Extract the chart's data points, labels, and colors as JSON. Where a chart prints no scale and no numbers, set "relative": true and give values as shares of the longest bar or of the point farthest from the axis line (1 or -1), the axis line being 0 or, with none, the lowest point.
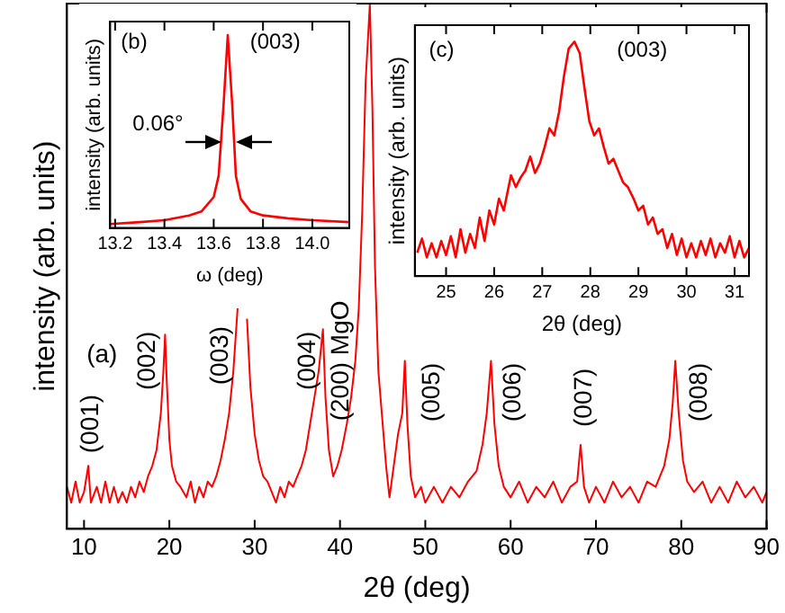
{
  "chart_data": [
    {
      "type": "line",
      "relative": true,
      "xlabel": "2θ (deg)",
      "ylabel": "intensity (arb. units)",
      "xlim": [
        8,
        90
      ],
      "xticks": [
        10,
        20,
        30,
        40,
        50,
        60,
        70,
        80,
        90
      ],
      "x": [
        8,
        8.5,
        9,
        9.5,
        10,
        10.5,
        10.8,
        11.5,
        12,
        12.5,
        13,
        13.5,
        14,
        14.5,
        15,
        15.5,
        16,
        16.5,
        17,
        17.5,
        18,
        18.5,
        19,
        19.3,
        19.5,
        19.7,
        20,
        20.3,
        20.8,
        21.3,
        22,
        22.5,
        23,
        23.5,
        24,
        24.5,
        25,
        25.5,
        26,
        26.5,
        27,
        27.5,
        28,
        28.4,
        28.6,
        28.8,
        29.1,
        29.5,
        30,
        30.5,
        31,
        31.5,
        32,
        32.5,
        33,
        33.5,
        34,
        34.5,
        35,
        35.5,
        36,
        36.5,
        37,
        37.5,
        38,
        38.3,
        38.7,
        39.2,
        39.7,
        40.2,
        40.8,
        41.3,
        41.8,
        42.2,
        42.6,
        43,
        43.5,
        43.8,
        44.1,
        44.5,
        45,
        45.4,
        45.8,
        46.3,
        46.8,
        47.3,
        47.6,
        47.9,
        48.3,
        48.8,
        49.5,
        50,
        51,
        52,
        53,
        54,
        55,
        56,
        56.7,
        57.2,
        57.7,
        58.1,
        58.6,
        59.2,
        60,
        61,
        62,
        63,
        64,
        65,
        66,
        67,
        67.8,
        68.2,
        68.6,
        69.2,
        70,
        71,
        72,
        73,
        74,
        75,
        76,
        77,
        78,
        78.6,
        79,
        79.3,
        79.7,
        80.2,
        80.7,
        81.5,
        82.5,
        83.5,
        84.5,
        85.5,
        86.5,
        87.5,
        88.5,
        89.5,
        90
      ],
      "series": [
        {
          "color": "#ff0000",
          "values": [
            0.08,
            0.05,
            0.09,
            0.05,
            0.07,
            0.12,
            0.05,
            0.08,
            0.05,
            0.09,
            0.05,
            0.08,
            0.05,
            0.07,
            0.05,
            0.08,
            0.06,
            0.09,
            0.07,
            0.1,
            0.12,
            0.15,
            0.22,
            0.3,
            0.37,
            0.28,
            0.17,
            0.12,
            0.09,
            0.08,
            0.06,
            0.09,
            0.05,
            0.08,
            0.06,
            0.09,
            0.08,
            0.1,
            0.13,
            0.17,
            0.22,
            0.3,
            0.42,
            null,
            null,
            null,
            0.4,
            0.27,
            0.18,
            0.13,
            0.1,
            0.09,
            0.07,
            0.05,
            0.08,
            0.06,
            0.09,
            0.08,
            0.1,
            0.12,
            0.15,
            0.2,
            0.25,
            0.3,
            0.38,
            0.25,
            0.15,
            0.1,
            0.12,
            0.15,
            0.2,
            0.25,
            0.32,
            0.42,
            0.6,
            0.85,
            1,
            0.8,
            0.5,
            0.3,
            0.2,
            0.12,
            0.06,
            0.12,
            0.18,
            0.22,
            0.32,
            0.2,
            0.1,
            0.06,
            0.08,
            0.05,
            0.08,
            0.05,
            0.08,
            0.06,
            0.09,
            0.11,
            0.16,
            0.22,
            0.32,
            0.2,
            0.12,
            0.08,
            0.06,
            0.09,
            0.05,
            0.08,
            0.06,
            0.09,
            0.05,
            0.08,
            0.09,
            0.16,
            0.08,
            0.05,
            0.08,
            0.05,
            0.09,
            0.06,
            0.08,
            0.05,
            0.09,
            0.08,
            0.12,
            0.17,
            0.24,
            0.32,
            0.22,
            0.13,
            0.09,
            0.07,
            0.09,
            0.05,
            0.08,
            0.05,
            0.09,
            0.06,
            0.08,
            0.05,
            0.07
          ]
        }
      ],
      "annotations": [
        "(a)",
        "(001)",
        "(002)",
        "(003)",
        "(004)",
        "(200) MgO",
        "(005)",
        "(006)",
        "(007)",
        "(008)"
      ]
    },
    {
      "type": "line",
      "relative": true,
      "xlabel": "ω (deg)",
      "ylabel": "intensity (arb. units)",
      "xlim": [
        13.18,
        14.15
      ],
      "xticks": [
        13.2,
        13.4,
        13.6,
        13.8,
        {
          "value": 14,
          "label": "14.0"
        }
      ],
      "x": [
        13.18,
        13.3,
        13.4,
        13.5,
        13.55,
        13.6,
        13.62,
        13.64,
        13.657,
        13.675,
        13.69,
        13.71,
        13.75,
        13.8,
        13.9,
        14,
        14.15
      ],
      "series": [
        {
          "color": "#ff0000",
          "values": [
            0.02,
            0.03,
            0.04,
            0.065,
            0.085,
            0.16,
            0.27,
            0.64,
            1,
            0.64,
            0.27,
            0.15,
            0.085,
            0.065,
            0.05,
            0.04,
            0.03
          ]
        }
      ],
      "annotations": [
        "(b)",
        "(003)",
        "0.06°"
      ]
    },
    {
      "type": "line",
      "relative": true,
      "xlabel": "2θ (deg)",
      "ylabel": "intensity (arb. units)",
      "xlim": [
        24.35,
        31.3
      ],
      "xticks": [
        25,
        26,
        27,
        28,
        29,
        30,
        31
      ],
      "x": [
        24.4,
        24.5,
        24.6,
        24.7,
        24.8,
        24.9,
        25,
        25.1,
        25.2,
        25.3,
        25.4,
        25.5,
        25.6,
        25.7,
        25.8,
        25.9,
        26,
        26.1,
        26.2,
        26.35,
        26.45,
        26.55,
        26.65,
        26.75,
        26.85,
        26.95,
        27.05,
        27.15,
        27.25,
        27.35,
        27.45,
        27.55,
        27.67,
        27.78,
        27.88,
        27.98,
        28.08,
        28.18,
        28.28,
        28.38,
        28.48,
        28.58,
        28.68,
        28.78,
        28.9,
        29,
        29.1,
        29.2,
        29.3,
        29.4,
        29.5,
        29.6,
        29.7,
        29.8,
        29.9,
        30,
        30.1,
        30.2,
        30.3,
        30.4,
        30.5,
        30.6,
        30.7,
        30.8,
        30.9,
        31,
        31.1,
        31.2,
        31.3
      ],
      "series": [
        {
          "color": "#ff0000",
          "values": [
            0.1,
            0.16,
            0.08,
            0.14,
            0.08,
            0.15,
            0.09,
            0.17,
            0.08,
            0.2,
            0.1,
            0.18,
            0.12,
            0.25,
            0.15,
            0.28,
            0.22,
            0.33,
            0.28,
            0.43,
            0.38,
            0.42,
            0.45,
            0.51,
            0.44,
            0.48,
            0.55,
            0.63,
            0.6,
            0.7,
            0.85,
            0.97,
            1,
            0.95,
            0.8,
            0.66,
            0.6,
            0.63,
            0.55,
            0.48,
            0.5,
            0.45,
            0.4,
            0.38,
            0.33,
            0.28,
            0.3,
            0.22,
            0.25,
            0.18,
            0.2,
            0.12,
            0.18,
            0.09,
            0.16,
            0.08,
            0.14,
            0.08,
            0.15,
            0.09,
            0.16,
            0.08,
            0.14,
            0.1,
            0.17,
            0.08,
            0.15,
            0.08,
            0.12
          ]
        }
      ],
      "annotations": [
        "(c)",
        "(003)"
      ]
    }
  ]
}
